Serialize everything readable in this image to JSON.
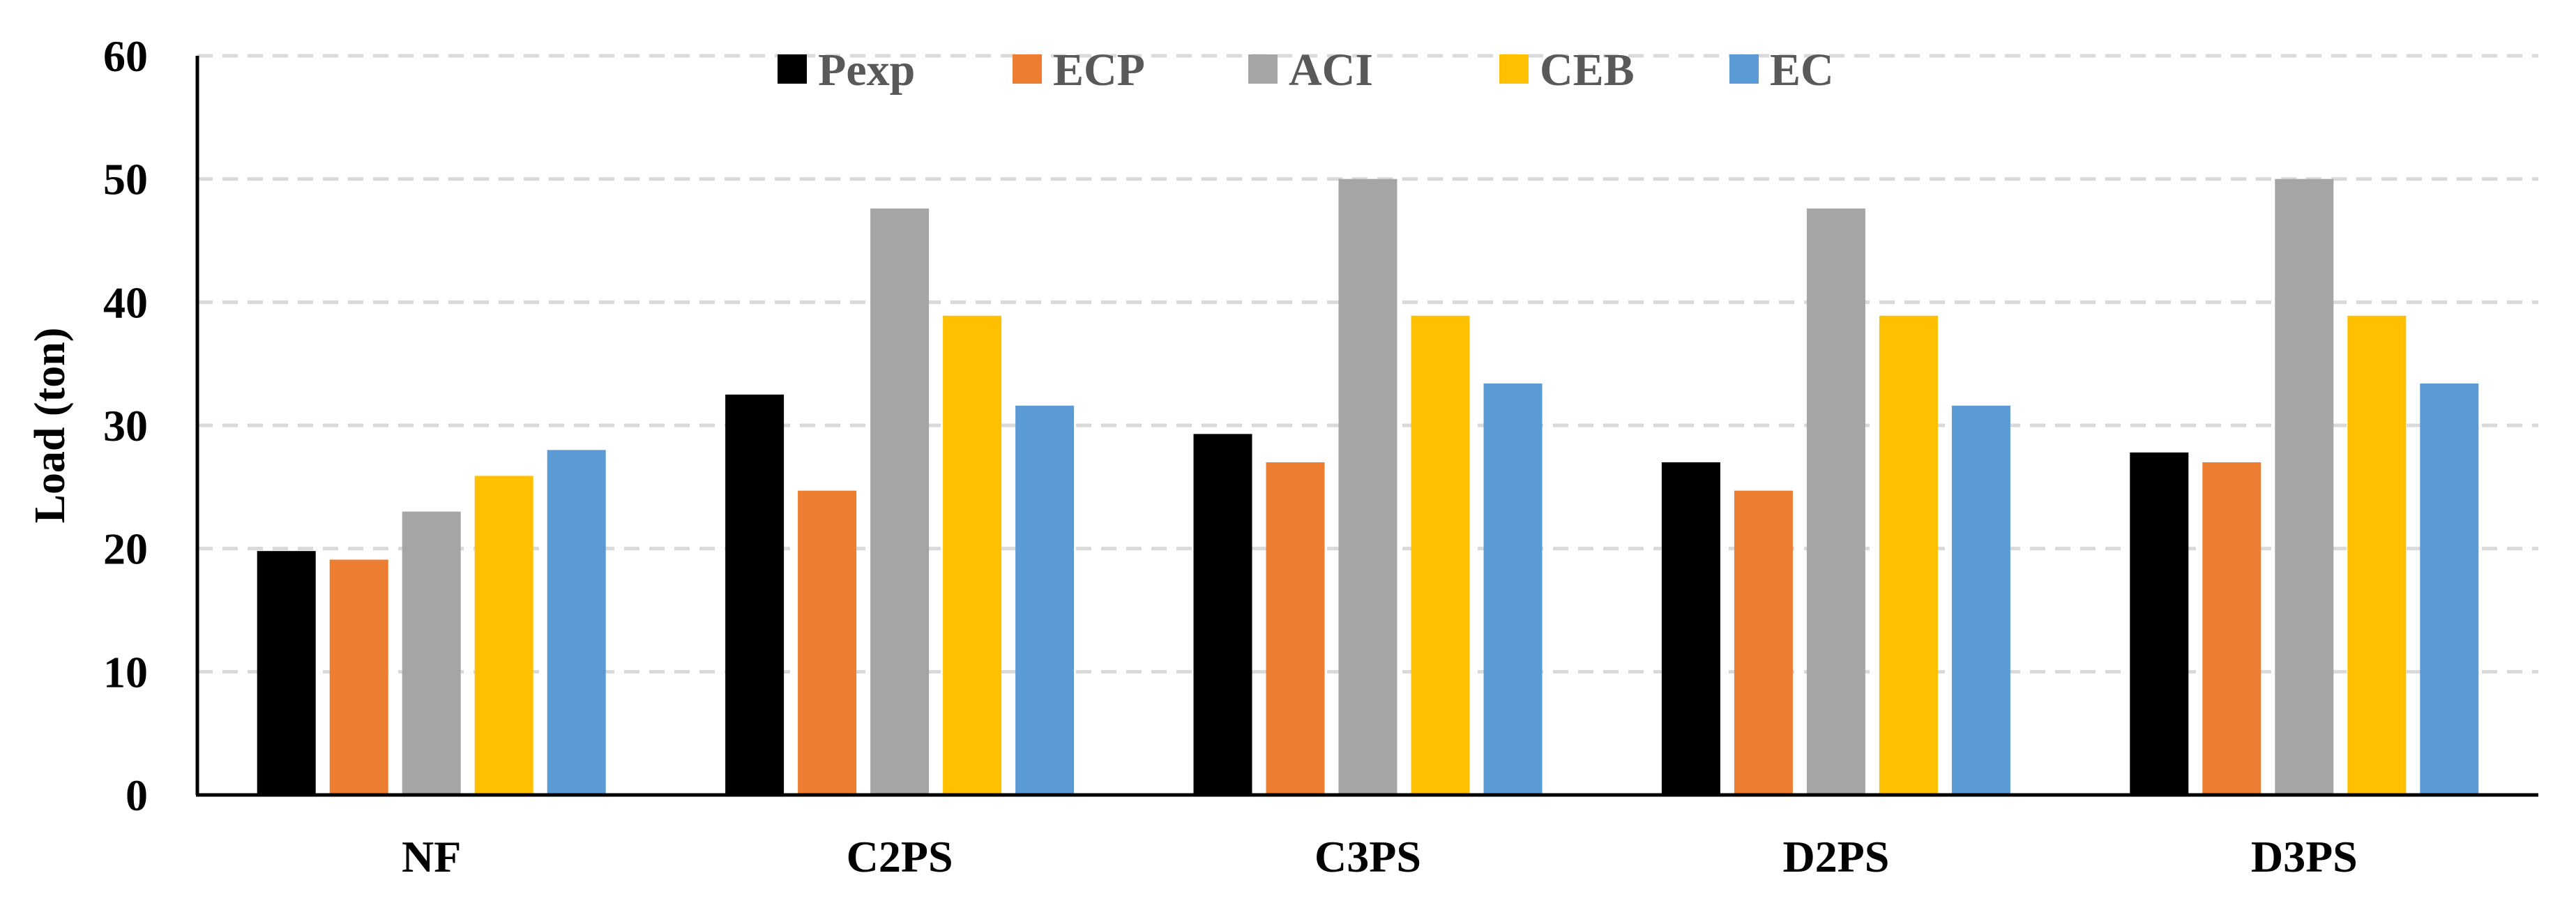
{
  "chart_data": {
    "type": "bar",
    "title": "",
    "xlabel": "",
    "ylabel": "Load (ton)",
    "ylim": [
      0,
      60
    ],
    "yticks": [
      0,
      10,
      20,
      30,
      40,
      50,
      60
    ],
    "grid": true,
    "legend_position": "top-center",
    "categories": [
      "NF",
      "C2PS",
      "C3PS",
      "D2PS",
      "D3PS"
    ],
    "series": [
      {
        "name": "Pexp",
        "color": "#000000",
        "values": [
          19.8,
          32.5,
          29.3,
          27.0,
          27.8
        ]
      },
      {
        "name": "ECP",
        "color": "#ED7D31",
        "values": [
          19.1,
          24.7,
          27.0,
          24.7,
          27.0
        ]
      },
      {
        "name": "ACI",
        "color": "#A5A5A5",
        "values": [
          23.0,
          47.6,
          50.0,
          47.6,
          50.0
        ]
      },
      {
        "name": "CEB",
        "color": "#FFC000",
        "values": [
          25.9,
          38.9,
          38.9,
          38.9,
          38.9
        ]
      },
      {
        "name": "EC",
        "color": "#5B9BD5",
        "values": [
          28.0,
          31.6,
          33.4,
          31.6,
          33.4
        ]
      }
    ]
  },
  "colors": {
    "axis": "#000000",
    "gridline": "#D9D9D9",
    "legend_text": "#595959",
    "tick_text": "#000000"
  }
}
